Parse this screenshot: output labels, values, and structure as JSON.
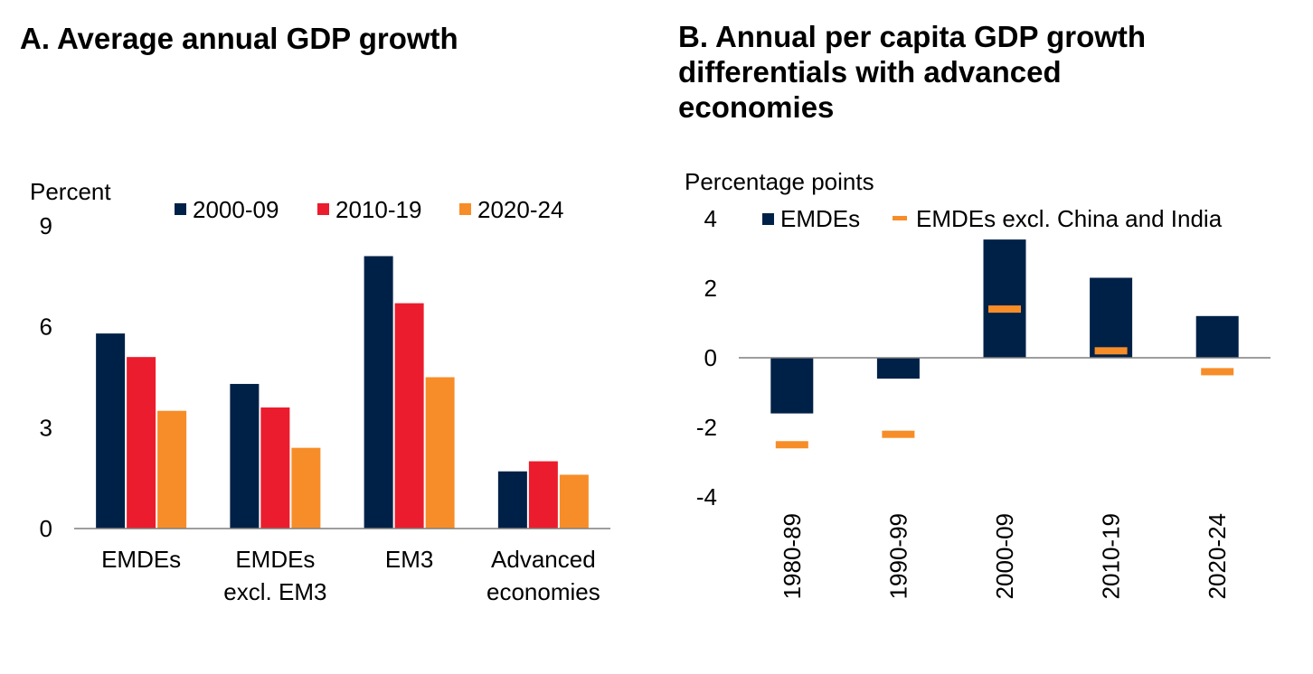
{
  "chart_data": [
    {
      "type": "bar",
      "title": "A. Average annual GDP growth",
      "ylabel": "Percent",
      "ylim": [
        0,
        9
      ],
      "yticks": [
        "0",
        "3",
        "6",
        "9"
      ],
      "categories": [
        [
          "EMDEs"
        ],
        [
          "EMDEs",
          "excl. EM3"
        ],
        [
          "EM3"
        ],
        [
          "Advanced",
          "economies"
        ]
      ],
      "series": [
        {
          "name": "2000-09",
          "color": "#002147",
          "values": [
            5.8,
            4.3,
            8.1,
            1.7
          ]
        },
        {
          "name": "2010-19",
          "color": "#EB1C2D",
          "values": [
            5.1,
            3.6,
            6.7,
            2.0
          ]
        },
        {
          "name": "2020-24",
          "color": "#F78D28",
          "values": [
            3.5,
            2.4,
            4.5,
            1.6
          ]
        }
      ],
      "legend": "top"
    },
    {
      "type": "bar",
      "title": "B. Annual per capita GDP growth differentials with advanced economies",
      "title_lines": [
        "B. Annual per capita GDP growth",
        "differentials with advanced",
        "economies"
      ],
      "ylabel": "Percentage points",
      "ylim": [
        -4,
        4
      ],
      "yticks": [
        "-4",
        "-2",
        "0",
        "2",
        "4"
      ],
      "categories": [
        "1980-89",
        "1990-99",
        "2000-09",
        "2010-19",
        "2020-24"
      ],
      "series": [
        {
          "name": "EMDEs",
          "color": "#002147",
          "marker": "bar",
          "values": [
            -1.6,
            -0.6,
            3.4,
            2.3,
            1.2
          ]
        },
        {
          "name": "EMDEs excl. China and India",
          "color": "#F78D28",
          "marker": "dash",
          "values": [
            -2.5,
            -2.2,
            1.4,
            0.2,
            -0.4
          ]
        }
      ],
      "legend": "top"
    }
  ]
}
